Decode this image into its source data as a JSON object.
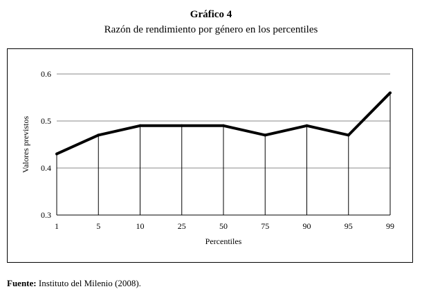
{
  "header": {
    "title": "Gráfico 4",
    "subtitle": "Razón de rendimiento por género en los percentiles"
  },
  "chart_data": {
    "type": "line",
    "categories": [
      "1",
      "5",
      "10",
      "25",
      "50",
      "75",
      "90",
      "95",
      "99"
    ],
    "values": [
      0.43,
      0.47,
      0.49,
      0.49,
      0.49,
      0.47,
      0.49,
      0.47,
      0.56
    ],
    "xlabel": "Percentiles",
    "ylabel": "Valores previstos",
    "ylim": [
      0.3,
      0.6
    ],
    "yticks": [
      "0.3",
      "0.4",
      "0.5",
      "0.6"
    ],
    "grid": true,
    "drop_lines": true,
    "line_color": "#000000"
  },
  "footer": {
    "source_label": "Fuente:",
    "source_text": " Instituto del Milenio (2008)."
  }
}
